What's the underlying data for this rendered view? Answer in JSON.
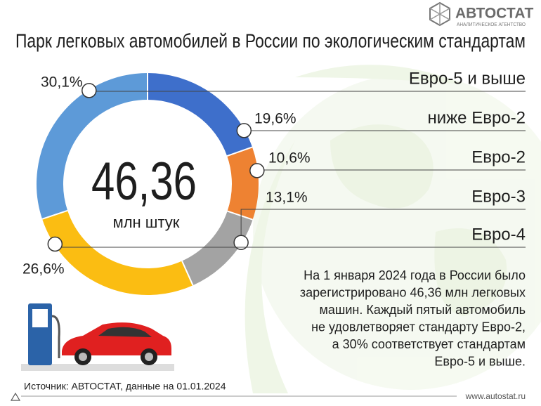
{
  "chart_data": {
    "type": "donut",
    "title": "Парк легковых автомобилей в России по экологическим стандартам",
    "center_value": "46,36",
    "center_label": "млн штук",
    "categories": [
      "ниже Евро-2",
      "Евро-2",
      "Евро-3",
      "Евро-4",
      "Евро-5 и выше"
    ],
    "values": [
      19.6,
      10.6,
      13.1,
      26.6,
      30.1
    ],
    "value_labels": [
      "19,6%",
      "10,6%",
      "13,1%",
      "26,6%",
      "30,1%"
    ],
    "colors": [
      "#3e6fcb",
      "#ee8232",
      "#a3a3a3",
      "#fbbd12",
      "#5d9ad8"
    ]
  },
  "brand": {
    "name": "АВТОСТАТ",
    "tagline": "АНАЛИТИЧЕСКОЕ АГЕНТСТВО"
  },
  "note_lines": [
    "На 1 января 2024 года в России было",
    "зарегистрировано 46,36 млн легковых",
    "машин. Каждый пятый автомобиль",
    "не удовлетворяет стандарту Евро-2,",
    "а 30% соответствует стандартам",
    "Евро-5 и выше."
  ],
  "source": "Источник: АВТОСТАТ, данные на 01.01.2024",
  "url": "www.autostat.ru"
}
